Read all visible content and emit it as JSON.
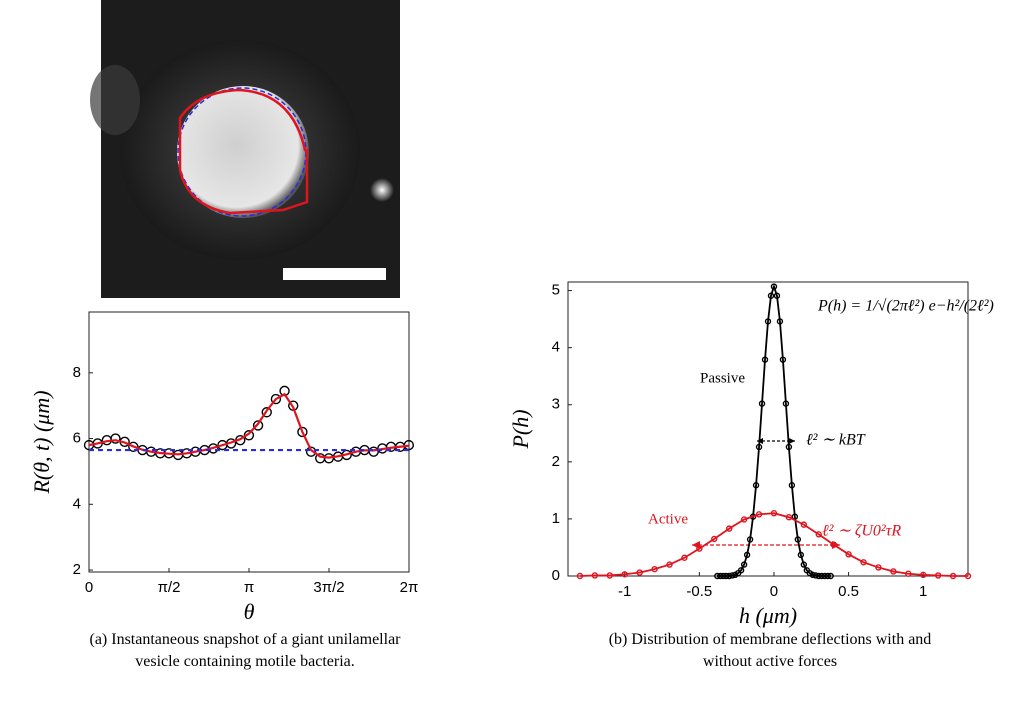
{
  "chart_data": [
    {
      "type": "line",
      "caption": "(a) Instantaneous snapshot of a giant unilamellar vesicle containing motile bacteria.",
      "xlabel": "θ",
      "ylabel": "R(θ, t) (μm)",
      "xlim": [
        0,
        6.2832
      ],
      "ylim": [
        1.94,
        9.85
      ],
      "xticks": [
        0,
        {
          "value": 1.5708,
          "label": "π/2"
        },
        {
          "value": 3.1416,
          "label": "π"
        },
        {
          "value": 4.7124,
          "label": "3π/2"
        },
        {
          "value": 6.2832,
          "label": "2π"
        }
      ],
      "yticks": [
        2,
        4,
        6,
        8
      ],
      "series": [
        {
          "color": "#000000",
          "marker": "circle",
          "line": false,
          "x": [
            0,
            0.17,
            0.35,
            0.52,
            0.7,
            0.87,
            1.05,
            1.22,
            1.4,
            1.57,
            1.75,
            1.92,
            2.09,
            2.27,
            2.44,
            2.62,
            2.79,
            2.97,
            3.14,
            3.32,
            3.49,
            3.67,
            3.84,
            4.01,
            4.19,
            4.36,
            4.54,
            4.71,
            4.89,
            5.06,
            5.24,
            5.41,
            5.59,
            5.76,
            5.93,
            6.11,
            6.28
          ],
          "values": [
            5.8,
            5.85,
            5.95,
            6.0,
            5.9,
            5.75,
            5.65,
            5.6,
            5.55,
            5.55,
            5.5,
            5.55,
            5.6,
            5.65,
            5.7,
            5.8,
            5.85,
            5.95,
            6.1,
            6.4,
            6.8,
            7.2,
            7.45,
            7.0,
            6.2,
            5.6,
            5.4,
            5.4,
            5.45,
            5.5,
            5.6,
            5.65,
            5.6,
            5.7,
            5.75,
            5.75,
            5.8
          ]
        },
        {
          "color": "#e0141e",
          "line": true,
          "x": [
            0,
            0.17,
            0.35,
            0.52,
            0.7,
            0.87,
            1.05,
            1.22,
            1.4,
            1.57,
            1.75,
            1.92,
            2.09,
            2.27,
            2.44,
            2.62,
            2.79,
            2.97,
            3.14,
            3.32,
            3.49,
            3.67,
            3.84,
            4.01,
            4.19,
            4.36,
            4.54,
            4.71,
            4.89,
            5.06,
            5.24,
            5.41,
            5.59,
            5.76,
            5.93,
            6.11,
            6.28
          ],
          "values": [
            5.8,
            5.85,
            5.92,
            5.95,
            5.88,
            5.76,
            5.66,
            5.6,
            5.56,
            5.54,
            5.52,
            5.55,
            5.6,
            5.65,
            5.72,
            5.8,
            5.88,
            5.98,
            6.15,
            6.45,
            6.85,
            7.2,
            7.35,
            6.95,
            6.2,
            5.65,
            5.45,
            5.42,
            5.46,
            5.52,
            5.6,
            5.64,
            5.64,
            5.68,
            5.72,
            5.75,
            5.78
          ]
        },
        {
          "color": "#2a2ae0",
          "line": true,
          "dash": true,
          "x": [
            0,
            6.28
          ],
          "values": [
            5.65,
            5.65
          ]
        }
      ]
    },
    {
      "type": "line",
      "caption": "(b) Distribution of membrane deflections with and without active forces",
      "xlabel": "h (μm)",
      "ylabel": "P(h)",
      "xlim": [
        -1.38,
        1.3
      ],
      "ylim": [
        0,
        5.15
      ],
      "xticks": [
        -1,
        -0.5,
        0,
        0.5,
        1
      ],
      "yticks": [
        0,
        1,
        2,
        3,
        4,
        5
      ],
      "annotations": [
        "P(h) = 1/√(2πℓ²) e−h²/(2ℓ²)",
        "ℓ² ∼ kBT",
        "ℓ² ∼ ζU0²τR"
      ],
      "series": [
        {
          "name": "Passive",
          "color": "#000000",
          "marker": "circle",
          "line": true,
          "x": [
            -0.38,
            -0.36,
            -0.34,
            -0.32,
            -0.3,
            -0.28,
            -0.26,
            -0.24,
            -0.22,
            -0.2,
            -0.18,
            -0.16,
            -0.14,
            -0.12,
            -0.1,
            -0.08,
            -0.06,
            -0.04,
            -0.02,
            0,
            0.02,
            0.04,
            0.06,
            0.08,
            0.1,
            0.12,
            0.14,
            0.16,
            0.18,
            0.2,
            0.22,
            0.24,
            0.26,
            0.28,
            0.3,
            0.32,
            0.34,
            0.36,
            0.38
          ],
          "values": [
            0,
            0,
            0,
            0,
            0,
            0.01,
            0.02,
            0.05,
            0.1,
            0.2,
            0.37,
            0.64,
            1.04,
            1.59,
            2.26,
            3.02,
            3.79,
            4.46,
            4.91,
            5.07,
            4.91,
            4.46,
            3.79,
            3.02,
            2.26,
            1.59,
            1.04,
            0.64,
            0.37,
            0.2,
            0.1,
            0.05,
            0.02,
            0.01,
            0,
            0,
            0,
            0,
            0
          ]
        },
        {
          "name": "Active",
          "color": "#e0141e",
          "marker": "circle",
          "line": true,
          "x": [
            -1.3,
            -1.2,
            -1.1,
            -1.0,
            -0.9,
            -0.8,
            -0.7,
            -0.6,
            -0.5,
            -0.4,
            -0.3,
            -0.2,
            -0.1,
            0,
            0.1,
            0.2,
            0.3,
            0.4,
            0.5,
            0.6,
            0.7,
            0.8,
            0.9,
            1.0,
            1.1,
            1.2,
            1.3
          ],
          "values": [
            0,
            0.01,
            0.01,
            0.03,
            0.06,
            0.12,
            0.2,
            0.32,
            0.48,
            0.65,
            0.83,
            0.99,
            1.08,
            1.1,
            1.03,
            0.9,
            0.73,
            0.55,
            0.38,
            0.24,
            0.15,
            0.08,
            0.04,
            0.02,
            0.01,
            0,
            0
          ]
        }
      ]
    }
  ]
}
